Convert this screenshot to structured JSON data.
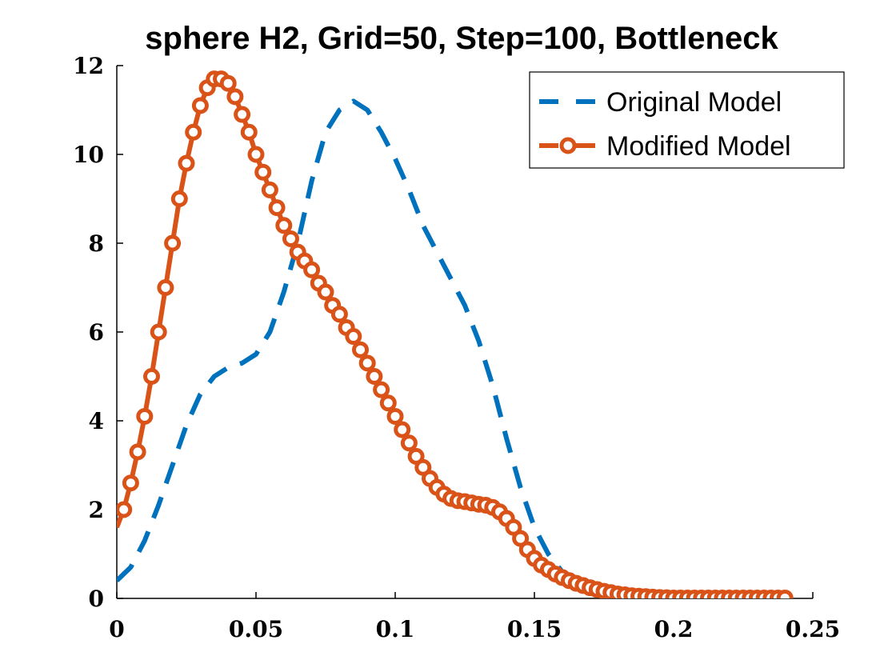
{
  "chart_data": {
    "type": "line",
    "title": "sphere H2, Grid=50, Step=100, Bottleneck",
    "xlabel": "",
    "ylabel": "",
    "xlim": [
      0,
      0.25
    ],
    "ylim": [
      0,
      12
    ],
    "xticks": [
      0,
      0.05,
      0.1,
      0.15,
      0.2,
      0.25
    ],
    "xtick_labels": [
      "0",
      "0.05",
      "0.1",
      "0.15",
      "0.2",
      "0.25"
    ],
    "yticks": [
      0,
      2,
      4,
      6,
      8,
      10,
      12
    ],
    "ytick_labels": [
      "0",
      "2",
      "4",
      "6",
      "8",
      "10",
      "12"
    ],
    "grid": false,
    "legend_position": "top-right",
    "series": [
      {
        "name": "Original Model",
        "color": "#0072BD",
        "style": "dashed",
        "x": [
          0,
          0.005,
          0.01,
          0.015,
          0.02,
          0.025,
          0.03,
          0.035,
          0.04,
          0.045,
          0.05,
          0.055,
          0.06,
          0.065,
          0.07,
          0.075,
          0.08,
          0.085,
          0.09,
          0.095,
          0.1,
          0.105,
          0.11,
          0.115,
          0.12,
          0.125,
          0.13,
          0.135,
          0.14,
          0.145,
          0.15,
          0.155,
          0.16,
          0.165,
          0.17,
          0.175,
          0.18,
          0.185,
          0.19,
          0.195,
          0.2,
          0.205,
          0.21,
          0.215,
          0.22,
          0.225,
          0.23,
          0.235,
          0.24
        ],
        "y": [
          0.4,
          0.7,
          1.3,
          2.1,
          3.0,
          3.9,
          4.6,
          5.0,
          5.2,
          5.3,
          5.5,
          6.0,
          6.9,
          8.0,
          9.4,
          10.5,
          11.0,
          11.2,
          11.0,
          10.5,
          9.9,
          9.2,
          8.4,
          7.8,
          7.2,
          6.6,
          5.8,
          4.8,
          3.6,
          2.5,
          1.6,
          1.0,
          0.6,
          0.4,
          0.3,
          0.22,
          0.17,
          0.13,
          0.1,
          0.08,
          0.06,
          0.05,
          0.04,
          0.03,
          0.02,
          0.02,
          0.01,
          0.01,
          0.01
        ]
      },
      {
        "name": "Modified Model",
        "color": "#D95319",
        "style": "solid-circles",
        "x": [
          0,
          0.0025,
          0.005,
          0.0075,
          0.01,
          0.0125,
          0.015,
          0.0175,
          0.02,
          0.0225,
          0.025,
          0.0275,
          0.03,
          0.0325,
          0.035,
          0.0375,
          0.04,
          0.0425,
          0.045,
          0.0475,
          0.05,
          0.0525,
          0.055,
          0.0575,
          0.06,
          0.0625,
          0.065,
          0.0675,
          0.07,
          0.0725,
          0.075,
          0.0775,
          0.08,
          0.0825,
          0.085,
          0.0875,
          0.09,
          0.0925,
          0.095,
          0.0975,
          0.1,
          0.1025,
          0.105,
          0.1075,
          0.11,
          0.1125,
          0.115,
          0.1175,
          0.12,
          0.1225,
          0.125,
          0.1275,
          0.13,
          0.1325,
          0.135,
          0.1375,
          0.14,
          0.1425,
          0.145,
          0.1475,
          0.15,
          0.1525,
          0.155,
          0.1575,
          0.16,
          0.1625,
          0.165,
          0.1675,
          0.17,
          0.1725,
          0.175,
          0.1775,
          0.18,
          0.1825,
          0.185,
          0.1875,
          0.19,
          0.1925,
          0.195,
          0.1975,
          0.2,
          0.2025,
          0.205,
          0.2075,
          0.21,
          0.2125,
          0.215,
          0.2175,
          0.22,
          0.2225,
          0.225,
          0.2275,
          0.23,
          0.2325,
          0.235,
          0.2375,
          0.24
        ],
        "y": [
          1.6,
          2.0,
          2.6,
          3.3,
          4.1,
          5.0,
          6.0,
          7.0,
          8.0,
          9.0,
          9.8,
          10.5,
          11.1,
          11.5,
          11.7,
          11.7,
          11.6,
          11.3,
          10.9,
          10.5,
          10.0,
          9.6,
          9.2,
          8.8,
          8.4,
          8.1,
          7.8,
          7.6,
          7.4,
          7.1,
          6.9,
          6.6,
          6.4,
          6.1,
          5.9,
          5.6,
          5.3,
          5.0,
          4.7,
          4.4,
          4.1,
          3.8,
          3.5,
          3.2,
          2.95,
          2.7,
          2.5,
          2.35,
          2.25,
          2.2,
          2.18,
          2.15,
          2.12,
          2.1,
          2.05,
          1.95,
          1.8,
          1.6,
          1.35,
          1.1,
          0.9,
          0.75,
          0.65,
          0.55,
          0.47,
          0.4,
          0.34,
          0.29,
          0.24,
          0.2,
          0.16,
          0.13,
          0.1,
          0.08,
          0.06,
          0.05,
          0.04,
          0.03,
          0.02,
          0.015,
          0.01,
          0.01,
          0.01,
          0.01,
          0.01,
          0.01,
          0.01,
          0.01,
          0.01,
          0.01,
          0.01,
          0.01,
          0.01,
          0.01,
          0.01,
          0.01,
          0.01
        ]
      }
    ]
  }
}
